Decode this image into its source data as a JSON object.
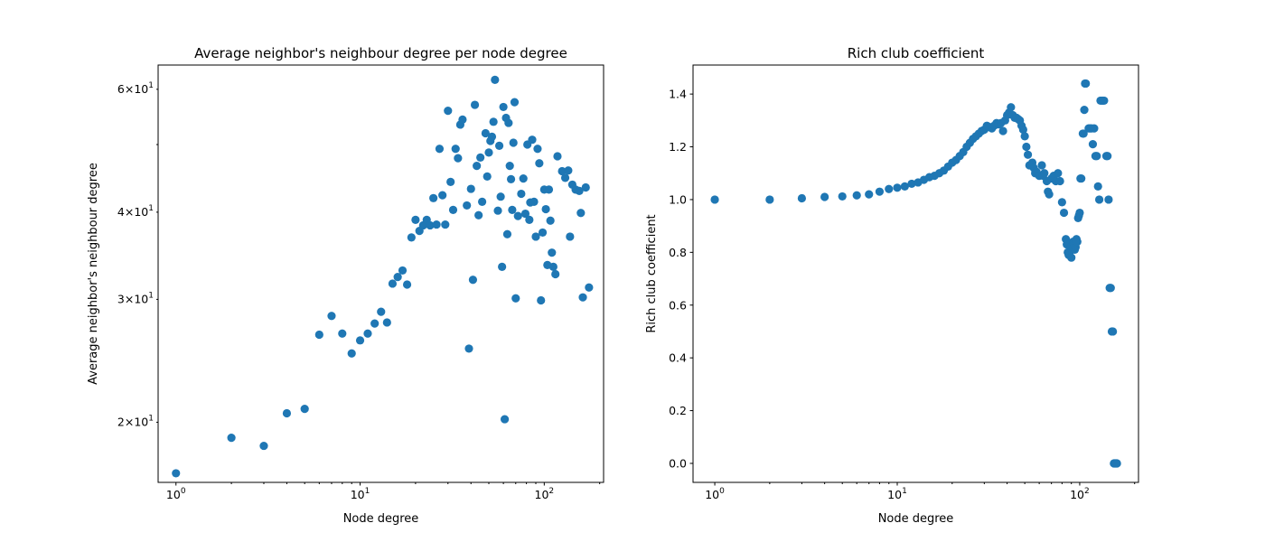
{
  "chart_data": [
    {
      "type": "scatter",
      "title": "Average neighbor's neighbour degree per node degree",
      "xlabel": "Node degree",
      "ylabel": "Average neighbor's neighbour degree",
      "xscale": "log",
      "yscale": "log",
      "xlim": [
        0.8,
        210
      ],
      "ylim": [
        16.4,
        65
      ],
      "x_ticks": [
        {
          "value": 1,
          "base": "10",
          "exp": "0"
        },
        {
          "value": 10,
          "base": "10",
          "exp": "1"
        },
        {
          "value": 100,
          "base": "10",
          "exp": "2"
        }
      ],
      "y_ticks": [
        {
          "value": 20,
          "mant": "2",
          "base": "10",
          "exp": "1"
        },
        {
          "value": 30,
          "mant": "3",
          "base": "10",
          "exp": "1"
        },
        {
          "value": 40,
          "mant": "4",
          "base": "10",
          "exp": "1"
        },
        {
          "value": 60,
          "mant": "6",
          "base": "10",
          "exp": "1"
        }
      ],
      "color": "#1f77b4",
      "points": [
        [
          1,
          16.9
        ],
        [
          2,
          19.0
        ],
        [
          3,
          18.5
        ],
        [
          4,
          20.6
        ],
        [
          5,
          20.9
        ],
        [
          6,
          26.7
        ],
        [
          7,
          28.4
        ],
        [
          8,
          26.8
        ],
        [
          9,
          25.1
        ],
        [
          10,
          26.2
        ],
        [
          11,
          26.8
        ],
        [
          12,
          27.7
        ],
        [
          13,
          28.8
        ],
        [
          14,
          27.8
        ],
        [
          15,
          31.6
        ],
        [
          16,
          32.3
        ],
        [
          17,
          33.0
        ],
        [
          18,
          31.5
        ],
        [
          19,
          36.8
        ],
        [
          20,
          39.0
        ],
        [
          21,
          37.6
        ],
        [
          22,
          38.3
        ],
        [
          23,
          39.0
        ],
        [
          24,
          38.3
        ],
        [
          25,
          41.9
        ],
        [
          26,
          38.4
        ],
        [
          27,
          49.3
        ],
        [
          28,
          42.3
        ],
        [
          29,
          38.4
        ],
        [
          30,
          55.9
        ],
        [
          31,
          44.2
        ],
        [
          32,
          40.3
        ],
        [
          33,
          49.3
        ],
        [
          34,
          47.8
        ],
        [
          35,
          53.4
        ],
        [
          36,
          54.3
        ],
        [
          38,
          40.9
        ],
        [
          39,
          25.5
        ],
        [
          40,
          43.2
        ],
        [
          41,
          32.0
        ],
        [
          42,
          57.0
        ],
        [
          43,
          46.6
        ],
        [
          44,
          39.6
        ],
        [
          45,
          47.9
        ],
        [
          46,
          41.4
        ],
        [
          48,
          51.9
        ],
        [
          49,
          45.0
        ],
        [
          50,
          48.7
        ],
        [
          51,
          50.6
        ],
        [
          52,
          51.3
        ],
        [
          53,
          53.9
        ],
        [
          54,
          61.9
        ],
        [
          56,
          40.2
        ],
        [
          57,
          49.8
        ],
        [
          58,
          42.1
        ],
        [
          59,
          33.4
        ],
        [
          60,
          56.6
        ],
        [
          61,
          20.2
        ],
        [
          62,
          54.6
        ],
        [
          63,
          37.2
        ],
        [
          64,
          53.7
        ],
        [
          65,
          46.6
        ],
        [
          66,
          44.6
        ],
        [
          67,
          40.3
        ],
        [
          68,
          50.3
        ],
        [
          69,
          57.5
        ],
        [
          70,
          30.1
        ],
        [
          72,
          39.5
        ],
        [
          75,
          42.5
        ],
        [
          77,
          44.7
        ],
        [
          79,
          39.8
        ],
        [
          81,
          50.0
        ],
        [
          83,
          39.0
        ],
        [
          84,
          41.3
        ],
        [
          86,
          50.8
        ],
        [
          88,
          41.4
        ],
        [
          90,
          36.9
        ],
        [
          92,
          49.3
        ],
        [
          94,
          47.0
        ],
        [
          96,
          29.9
        ],
        [
          98,
          37.4
        ],
        [
          100,
          43.1
        ],
        [
          102,
          40.4
        ],
        [
          104,
          33.6
        ],
        [
          106,
          43.1
        ],
        [
          108,
          38.9
        ],
        [
          110,
          35.0
        ],
        [
          112,
          33.4
        ],
        [
          115,
          32.6
        ],
        [
          118,
          48.1
        ],
        [
          125,
          45.8
        ],
        [
          130,
          44.8
        ],
        [
          135,
          45.9
        ],
        [
          138,
          36.9
        ],
        [
          142,
          43.8
        ],
        [
          148,
          43.1
        ],
        [
          155,
          42.9
        ],
        [
          158,
          39.9
        ],
        [
          162,
          30.2
        ],
        [
          168,
          43.4
        ],
        [
          175,
          31.2
        ]
      ]
    },
    {
      "type": "scatter",
      "title": "Rich club coefficient",
      "xlabel": "Node degree",
      "ylabel": "Rich club coefficient",
      "xscale": "log",
      "yscale": "linear",
      "xlim": [
        0.76,
        210
      ],
      "ylim": [
        -0.072,
        1.51
      ],
      "x_ticks": [
        {
          "value": 1,
          "base": "10",
          "exp": "0"
        },
        {
          "value": 10,
          "base": "10",
          "exp": "1"
        },
        {
          "value": 100,
          "base": "10",
          "exp": "2"
        }
      ],
      "y_ticks": [
        {
          "value": 0.0,
          "label": "0.0"
        },
        {
          "value": 0.2,
          "label": "0.2"
        },
        {
          "value": 0.4,
          "label": "0.4"
        },
        {
          "value": 0.6,
          "label": "0.6"
        },
        {
          "value": 0.8,
          "label": "0.8"
        },
        {
          "value": 1.0,
          "label": "1.0"
        },
        {
          "value": 1.2,
          "label": "1.2"
        },
        {
          "value": 1.4,
          "label": "1.4"
        }
      ],
      "color": "#1f77b4",
      "points": [
        [
          1,
          1.0
        ],
        [
          2,
          1.0
        ],
        [
          3,
          1.005
        ],
        [
          4,
          1.01
        ],
        [
          5,
          1.012
        ],
        [
          6,
          1.016
        ],
        [
          7,
          1.02
        ],
        [
          8,
          1.03
        ],
        [
          9,
          1.04
        ],
        [
          10,
          1.045
        ],
        [
          11,
          1.05
        ],
        [
          12,
          1.06
        ],
        [
          13,
          1.065
        ],
        [
          14,
          1.075
        ],
        [
          15,
          1.085
        ],
        [
          16,
          1.09
        ],
        [
          17,
          1.1
        ],
        [
          18,
          1.11
        ],
        [
          19,
          1.125
        ],
        [
          20,
          1.14
        ],
        [
          21,
          1.15
        ],
        [
          22,
          1.165
        ],
        [
          23,
          1.18
        ],
        [
          24,
          1.2
        ],
        [
          25,
          1.215
        ],
        [
          26,
          1.23
        ],
        [
          27,
          1.24
        ],
        [
          28,
          1.25
        ],
        [
          29,
          1.26
        ],
        [
          30,
          1.265
        ],
        [
          31,
          1.28
        ],
        [
          32,
          1.275
        ],
        [
          33,
          1.27
        ],
        [
          34,
          1.28
        ],
        [
          35,
          1.29
        ],
        [
          36,
          1.285
        ],
        [
          37,
          1.29
        ],
        [
          38,
          1.26
        ],
        [
          39,
          1.3
        ],
        [
          40,
          1.32
        ],
        [
          41,
          1.33
        ],
        [
          42,
          1.35
        ],
        [
          43,
          1.32
        ],
        [
          44,
          1.31
        ],
        [
          45,
          1.31
        ],
        [
          46,
          1.305
        ],
        [
          47,
          1.3
        ],
        [
          48,
          1.28
        ],
        [
          49,
          1.265
        ],
        [
          50,
          1.24
        ],
        [
          51,
          1.2
        ],
        [
          52,
          1.17
        ],
        [
          53,
          1.13
        ],
        [
          55,
          1.14
        ],
        [
          56,
          1.12
        ],
        [
          57,
          1.1
        ],
        [
          58,
          1.105
        ],
        [
          60,
          1.09
        ],
        [
          62,
          1.13
        ],
        [
          63,
          1.09
        ],
        [
          64,
          1.1
        ],
        [
          66,
          1.07
        ],
        [
          67,
          1.03
        ],
        [
          68,
          1.02
        ],
        [
          70,
          1.08
        ],
        [
          72,
          1.09
        ],
        [
          74,
          1.07
        ],
        [
          76,
          1.1
        ],
        [
          78,
          1.07
        ],
        [
          80,
          0.99
        ],
        [
          82,
          0.95
        ],
        [
          84,
          0.85
        ],
        [
          85,
          0.83
        ],
        [
          86,
          0.8
        ],
        [
          87,
          0.79
        ],
        [
          88,
          0.8
        ],
        [
          89,
          0.82
        ],
        [
          90,
          0.78
        ],
        [
          91,
          0.81
        ],
        [
          92,
          0.84
        ],
        [
          93,
          0.83
        ],
        [
          94,
          0.81
        ],
        [
          95,
          0.82
        ],
        [
          96,
          0.85
        ],
        [
          97,
          0.84
        ],
        [
          98,
          0.93
        ],
        [
          99,
          0.94
        ],
        [
          100,
          0.95
        ],
        [
          101,
          1.08
        ],
        [
          102,
          1.08
        ],
        [
          104,
          1.25
        ],
        [
          105,
          1.25
        ],
        [
          106,
          1.34
        ],
        [
          107,
          1.44
        ],
        [
          108,
          1.44
        ],
        [
          112,
          1.27
        ],
        [
          114,
          1.27
        ],
        [
          116,
          1.27
        ],
        [
          118,
          1.21
        ],
        [
          120,
          1.27
        ],
        [
          122,
          1.165
        ],
        [
          124,
          1.165
        ],
        [
          126,
          1.05
        ],
        [
          128,
          1.0
        ],
        [
          130,
          1.375
        ],
        [
          132,
          1.375
        ],
        [
          134,
          1.375
        ],
        [
          136,
          1.375
        ],
        [
          140,
          1.165
        ],
        [
          142,
          1.165
        ],
        [
          144,
          1.0
        ],
        [
          146,
          0.665
        ],
        [
          148,
          0.665
        ],
        [
          150,
          0.5
        ],
        [
          152,
          0.5
        ],
        [
          154,
          0.0
        ],
        [
          156,
          0.0
        ],
        [
          158,
          0.0
        ],
        [
          160,
          0.0
        ]
      ]
    }
  ]
}
